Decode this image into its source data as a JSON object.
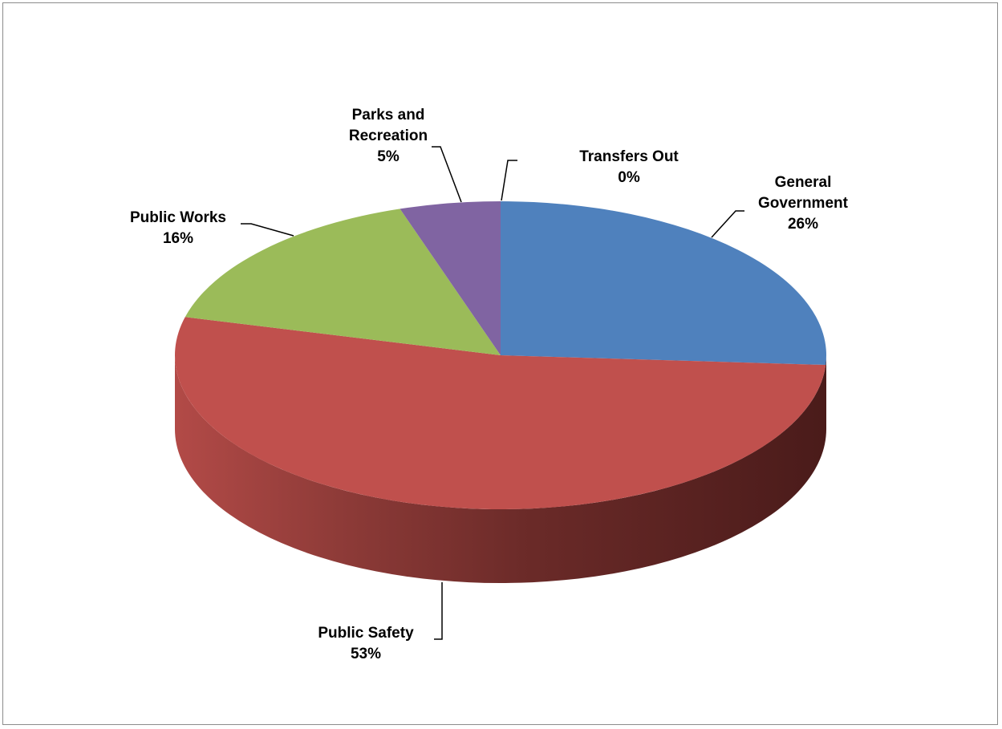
{
  "chart_data": {
    "type": "pie",
    "title": "",
    "three_d": true,
    "slices": [
      {
        "label": "General Government",
        "label_lines": [
          "General",
          "Government"
        ],
        "value": 26,
        "pct_label": "26%",
        "color": "#4f81bd"
      },
      {
        "label": "Public Safety",
        "label_lines": [
          "Public Safety"
        ],
        "value": 53,
        "pct_label": "53%",
        "color": "#c0504d"
      },
      {
        "label": "Public Works",
        "label_lines": [
          "Public Works"
        ],
        "value": 16,
        "pct_label": "16%",
        "color": "#9bbb59"
      },
      {
        "label": "Parks and Recreation",
        "label_lines": [
          "Parks and",
          "Recreation"
        ],
        "value": 5,
        "pct_label": "5%",
        "color": "#8064a2"
      },
      {
        "label": "Transfers Out",
        "label_lines": [
          "Transfers Out"
        ],
        "value": 0,
        "pct_label": "0%",
        "color": "#f79646"
      }
    ],
    "legend": "none",
    "data_labels": "outside with leader lines"
  }
}
